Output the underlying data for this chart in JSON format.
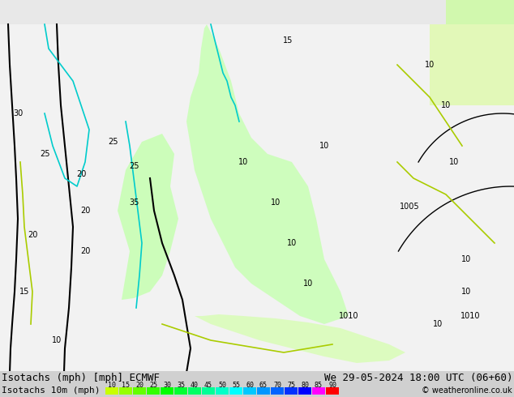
{
  "title_left": "Isotachs (mph) [mph] ECMWF",
  "title_right": "We 29-05-2024 18:00 UTC (06+60)",
  "legend_label": "Isotachs 10m (mph)",
  "copyright": "© weatheronline.co.uk",
  "legend_values": [
    10,
    15,
    20,
    25,
    30,
    35,
    40,
    45,
    50,
    55,
    60,
    65,
    70,
    75,
    80,
    85,
    90
  ],
  "legend_colors": [
    "#c8ff00",
    "#96ff00",
    "#64ff00",
    "#32ff00",
    "#00ff00",
    "#00ff32",
    "#00ff64",
    "#00ff96",
    "#00ffc8",
    "#00ffff",
    "#00c8ff",
    "#0096ff",
    "#0064ff",
    "#0032ff",
    "#0000ff",
    "#ff00ff",
    "#ff0000"
  ],
  "bg_color": "#f0f0f0",
  "map_bg": "#f8f8f8",
  "font_size_title": 9,
  "font_size_legend": 8
}
